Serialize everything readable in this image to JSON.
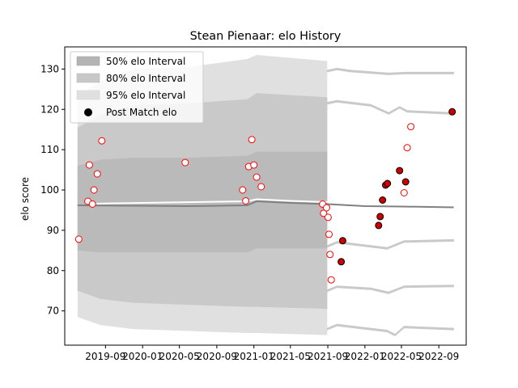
{
  "chart_data": {
    "type": "scatter",
    "title": "Stean Pienaar: elo History",
    "xlabel": "",
    "ylabel": "elo score",
    "xlim": [
      "2019-04-20",
      "2022-11-30"
    ],
    "ylim": [
      61.5,
      135.5
    ],
    "y_ticks": [
      70,
      80,
      90,
      100,
      110,
      120,
      130
    ],
    "x_ticks": [
      {
        "date": "2019-09-01",
        "label": "2019-09"
      },
      {
        "date": "2020-01-01",
        "label": "2020-01"
      },
      {
        "date": "2020-05-01",
        "label": "2020-05"
      },
      {
        "date": "2020-09-01",
        "label": "2020-09"
      },
      {
        "date": "2021-01-01",
        "label": "2021-01"
      },
      {
        "date": "2021-05-01",
        "label": "2021-05"
      },
      {
        "date": "2021-09-01",
        "label": "2021-09"
      },
      {
        "date": "2022-01-01",
        "label": "2022-01"
      },
      {
        "date": "2022-05-01",
        "label": "2022-05"
      },
      {
        "date": "2022-09-01",
        "label": "2022-09"
      }
    ],
    "legend": {
      "placement": "top-left",
      "entries": [
        {
          "label": "50% elo Interval",
          "color": "#b4b4b4"
        },
        {
          "label": "80% elo Interval",
          "color": "#c8c8c8"
        },
        {
          "label": "95% elo Interval",
          "color": "#e0e0e0"
        },
        {
          "label": "Post Match elo",
          "color": "#000000"
        }
      ]
    },
    "colors": {
      "band_95": "#e0e0e0",
      "band_80": "#c9c9c9",
      "band_50": "#bababa",
      "mean_line": "#808080",
      "post_line": "#ffffff",
      "marker_edge": "#ff0000",
      "marker_fill_filled": "#cc0000",
      "marker_fill_open": "#ffffff"
    },
    "bands_wide": [
      {
        "date": "2019-06-01",
        "lo95": 68.5,
        "lo80": 75.0,
        "lo50": 85.0,
        "hi50": 106.0,
        "hi80": 115.5,
        "hi95": 123.0
      },
      {
        "date": "2019-08-15",
        "lo95": 66.5,
        "lo80": 73.0,
        "lo50": 84.5,
        "hi50": 107.5,
        "hi80": 118.5,
        "hi95": 127.0
      },
      {
        "date": "2019-12-01",
        "lo95": 65.5,
        "lo80": 72.0,
        "lo50": 84.5,
        "hi50": 108.0,
        "hi80": 121.0,
        "hi95": 130.0
      },
      {
        "date": "2020-06-01",
        "lo95": 65.0,
        "lo80": 71.5,
        "lo50": 84.5,
        "hi50": 108.0,
        "hi80": 121.5,
        "hi95": 130.5
      },
      {
        "date": "2020-12-10",
        "lo95": 64.5,
        "lo80": 71.0,
        "lo50": 84.5,
        "hi50": 108.5,
        "hi80": 122.5,
        "hi95": 132.5
      },
      {
        "date": "2021-01-10",
        "lo95": 64.5,
        "lo80": 71.0,
        "lo50": 85.5,
        "hi50": 109.5,
        "hi80": 124.0,
        "hi95": 133.5
      },
      {
        "date": "2021-08-30",
        "lo95": 64.0,
        "lo80": 70.5,
        "lo50": 85.5,
        "hi50": 109.5,
        "hi80": 123.0,
        "hi95": 132.0
      }
    ],
    "post_tracks": [
      {
        "name": "t130",
        "points": [
          {
            "date": "2021-08-30",
            "y": 129.5
          },
          {
            "date": "2021-10-01",
            "y": 130.0
          },
          {
            "date": "2021-11-15",
            "y": 129.5
          },
          {
            "date": "2022-03-20",
            "y": 128.8
          },
          {
            "date": "2022-05-15",
            "y": 129.0
          },
          {
            "date": "2022-10-20",
            "y": 129.0
          }
        ]
      },
      {
        "name": "t120",
        "points": [
          {
            "date": "2021-08-30",
            "y": 121.5
          },
          {
            "date": "2021-10-01",
            "y": 122.0
          },
          {
            "date": "2022-01-20",
            "y": 121.0
          },
          {
            "date": "2022-03-20",
            "y": 119.0
          },
          {
            "date": "2022-04-25",
            "y": 120.5
          },
          {
            "date": "2022-05-20",
            "y": 119.5
          },
          {
            "date": "2022-10-20",
            "y": 119.0
          }
        ]
      },
      {
        "name": "t87",
        "points": [
          {
            "date": "2021-08-30",
            "y": 86.0
          },
          {
            "date": "2021-10-01",
            "y": 87.0
          },
          {
            "date": "2022-01-20",
            "y": 86.0
          },
          {
            "date": "2022-03-15",
            "y": 85.5
          },
          {
            "date": "2022-05-10",
            "y": 87.2
          },
          {
            "date": "2022-10-20",
            "y": 87.5
          }
        ]
      },
      {
        "name": "t76",
        "points": [
          {
            "date": "2021-08-30",
            "y": 75.0
          },
          {
            "date": "2021-10-01",
            "y": 76.0
          },
          {
            "date": "2022-01-20",
            "y": 75.5
          },
          {
            "date": "2022-03-20",
            "y": 74.5
          },
          {
            "date": "2022-05-10",
            "y": 76.0
          },
          {
            "date": "2022-10-20",
            "y": 76.2
          }
        ]
      },
      {
        "name": "t66",
        "points": [
          {
            "date": "2021-08-30",
            "y": 65.5
          },
          {
            "date": "2021-10-01",
            "y": 66.5
          },
          {
            "date": "2022-01-20",
            "y": 65.5
          },
          {
            "date": "2022-03-15",
            "y": 65.0
          },
          {
            "date": "2022-04-10",
            "y": 64.0
          },
          {
            "date": "2022-05-10",
            "y": 66.0
          },
          {
            "date": "2022-10-20",
            "y": 65.5
          }
        ]
      }
    ],
    "mean_line": [
      {
        "date": "2019-06-01",
        "y": 96.2
      },
      {
        "date": "2020-06-01",
        "y": 96.0
      },
      {
        "date": "2020-12-10",
        "y": 96.2
      },
      {
        "date": "2021-01-10",
        "y": 97.2
      },
      {
        "date": "2021-05-01",
        "y": 96.8
      },
      {
        "date": "2021-08-30",
        "y": 96.5
      },
      {
        "date": "2022-01-01",
        "y": 96.0
      },
      {
        "date": "2022-05-01",
        "y": 95.9
      },
      {
        "date": "2022-10-20",
        "y": 95.7
      }
    ],
    "post_line": [
      {
        "date": "2019-07-15",
        "y": 96.6
      },
      {
        "date": "2020-12-10",
        "y": 97.2
      },
      {
        "date": "2021-01-10",
        "y": 97.7
      },
      {
        "date": "2021-05-01",
        "y": 97.3
      },
      {
        "date": "2021-08-30",
        "y": 97.0
      }
    ],
    "points_open": [
      {
        "date": "2019-06-05",
        "y": 87.8
      },
      {
        "date": "2019-07-05",
        "y": 97.2
      },
      {
        "date": "2019-07-10",
        "y": 106.2
      },
      {
        "date": "2019-07-20",
        "y": 96.5
      },
      {
        "date": "2019-07-25",
        "y": 100.0
      },
      {
        "date": "2019-08-05",
        "y": 104.0
      },
      {
        "date": "2019-08-20",
        "y": 112.2
      },
      {
        "date": "2020-05-20",
        "y": 106.8
      },
      {
        "date": "2020-11-25",
        "y": 100.0
      },
      {
        "date": "2020-12-05",
        "y": 97.3
      },
      {
        "date": "2020-12-15",
        "y": 105.8
      },
      {
        "date": "2020-12-25",
        "y": 112.5
      },
      {
        "date": "2021-01-01",
        "y": 106.2
      },
      {
        "date": "2021-01-10",
        "y": 103.2
      },
      {
        "date": "2021-01-25",
        "y": 100.8
      },
      {
        "date": "2021-08-15",
        "y": 96.5
      },
      {
        "date": "2021-08-18",
        "y": 94.2
      },
      {
        "date": "2021-08-28",
        "y": 95.6
      },
      {
        "date": "2021-09-02",
        "y": 93.2
      },
      {
        "date": "2021-09-05",
        "y": 89.0
      },
      {
        "date": "2021-09-08",
        "y": 84.0
      },
      {
        "date": "2021-09-12",
        "y": 77.7
      },
      {
        "date": "2022-05-10",
        "y": 99.3
      },
      {
        "date": "2022-05-20",
        "y": 110.5
      },
      {
        "date": "2022-06-01",
        "y": 115.7
      }
    ],
    "points_filled": [
      {
        "date": "2021-10-20",
        "y": 87.4
      },
      {
        "date": "2021-10-15",
        "y": 82.2
      },
      {
        "date": "2022-02-15",
        "y": 91.2
      },
      {
        "date": "2022-02-20",
        "y": 93.4
      },
      {
        "date": "2022-02-28",
        "y": 97.5
      },
      {
        "date": "2022-03-10",
        "y": 101.2
      },
      {
        "date": "2022-03-16",
        "y": 101.6
      },
      {
        "date": "2022-04-25",
        "y": 104.8
      },
      {
        "date": "2022-05-15",
        "y": 102.0
      },
      {
        "date": "2022-10-15",
        "y": 119.4
      }
    ]
  }
}
